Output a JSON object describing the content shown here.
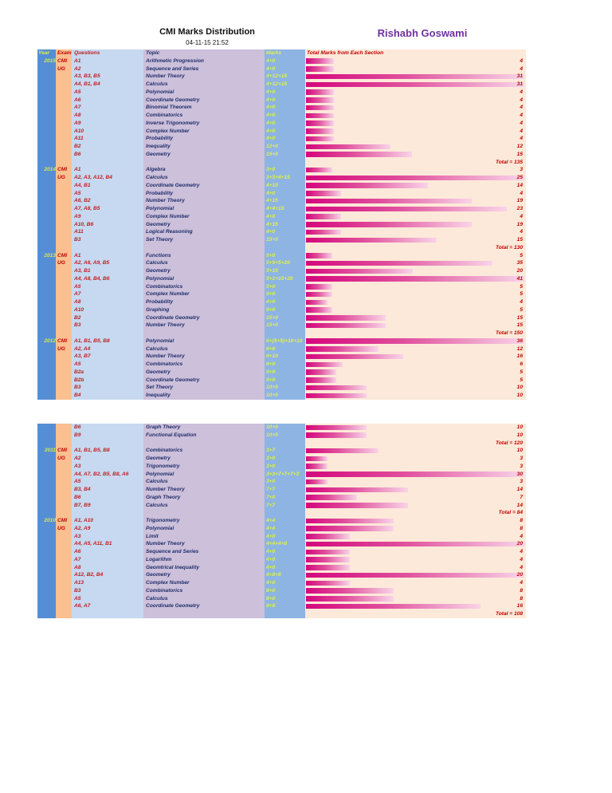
{
  "document": {
    "title": "CMI Marks Distribution",
    "date": "04-11-15 21:52",
    "author": "Rishabh Goswami"
  },
  "header": {
    "year": "Year",
    "exam": "Exam",
    "questions": "Questions",
    "topic": "Topic",
    "marks": "Marks",
    "total": "Total Marks from Each Section"
  },
  "colors": {
    "year_col": "#558ed5",
    "exam_col": "#fac090",
    "questions_col": "#c6d9f1",
    "topic_col": "#ccc0da",
    "marks_col": "#8eb4e3",
    "bar_area": "#fde9d9",
    "bar": "#d4067c",
    "author": "#7030a0"
  },
  "pages": [
    {
      "sections": [
        {
          "year": "2015",
          "exam": [
            "CMI",
            "UG"
          ],
          "total_label": "Total = 135",
          "rows": [
            {
              "q": "A1",
              "topic": "Arithmetic Progression",
              "marks": "4+0",
              "total": 4
            },
            {
              "q": "A2",
              "topic": "Sequence and Series",
              "marks": "4+0",
              "total": 4
            },
            {
              "q": "A3, B3, B5",
              "topic": "Number Theory",
              "marks": "4+12+15",
              "total": 31
            },
            {
              "q": "A4, B1, B4",
              "topic": "Calculus",
              "marks": "4+12+15",
              "total": 31
            },
            {
              "q": "A5",
              "topic": "Polynomial",
              "marks": "4+0",
              "total": 4
            },
            {
              "q": "A6",
              "topic": "Coordinate Geometry",
              "marks": "4+0",
              "total": 4
            },
            {
              "q": "A7",
              "topic": "Binomial Theorem",
              "marks": "4+0",
              "total": 4
            },
            {
              "q": "A8",
              "topic": "Combinatorics",
              "marks": "4+0",
              "total": 4
            },
            {
              "q": "A9",
              "topic": "Inverse Trigonometry",
              "marks": "4+0",
              "total": 4
            },
            {
              "q": "A10",
              "topic": "Complex Number",
              "marks": "4+0",
              "total": 4
            },
            {
              "q": "A11",
              "topic": "Probability",
              "marks": "4+0",
              "total": 4
            },
            {
              "q": "B2",
              "topic": "Inequality",
              "marks": "12+0",
              "total": 12
            },
            {
              "q": "B6",
              "topic": "Geometry",
              "marks": "15+0",
              "total": 15
            }
          ]
        },
        {
          "year": "2014",
          "exam": [
            "CMI",
            "UG"
          ],
          "total_label": "Total = 130",
          "rows": [
            {
              "q": "A1",
              "topic": "Algebra",
              "marks": "3+0",
              "total": 3
            },
            {
              "q": "A2, A3, A12, B4",
              "topic": "Calculus",
              "marks": "3+3+4+15",
              "total": 25
            },
            {
              "q": "A4, B1",
              "topic": "Coordinate Geometry",
              "marks": "4+10",
              "total": 14
            },
            {
              "q": "A5",
              "topic": "Probability",
              "marks": "4+0",
              "total": 4
            },
            {
              "q": "A6, B2",
              "topic": "Number Theory",
              "marks": "4+15",
              "total": 19
            },
            {
              "q": "A7, A8, B5",
              "topic": "Polynomial",
              "marks": "4+4+15",
              "total": 23
            },
            {
              "q": "A9",
              "topic": "Complex Number",
              "marks": "4+0",
              "total": 4
            },
            {
              "q": "A10, B6",
              "topic": "Geometry",
              "marks": "4+15",
              "total": 19
            },
            {
              "q": "A11",
              "topic": "Logical Reasoning",
              "marks": "4+0",
              "total": 4
            },
            {
              "q": "B3",
              "topic": "Set Theory",
              "marks": "15+0",
              "total": 15
            }
          ]
        },
        {
          "year": "2013",
          "exam": [
            "CMI",
            "UG"
          ],
          "total_label": "Total = 150",
          "rows": [
            {
              "q": "A1",
              "topic": "Functions",
              "marks": "5+0",
              "total": 5
            },
            {
              "q": "A2, A6, A9, B5",
              "topic": "Calculus",
              "marks": "5+5+5+20",
              "total": 35
            },
            {
              "q": "A3, B1",
              "topic": "Geometry",
              "marks": "5+15",
              "total": 20
            },
            {
              "q": "A4, A8, B4, B6",
              "topic": "Polynomial",
              "marks": "5+1+15+20",
              "total": 41
            },
            {
              "q": "A5",
              "topic": "Combinatorics",
              "marks": "5+0",
              "total": 5
            },
            {
              "q": "A7",
              "topic": "Complex Number",
              "marks": "5+0",
              "total": 5
            },
            {
              "q": "A8",
              "topic": "Probability",
              "marks": "4+0",
              "total": 4
            },
            {
              "q": "A10",
              "topic": "Graphing",
              "marks": "5+0",
              "total": 5
            },
            {
              "q": "B2",
              "topic": "Coordinate Geometry",
              "marks": "15+0",
              "total": 15
            },
            {
              "q": "B3",
              "topic": "Number Theory",
              "marks": "15+0",
              "total": 15
            }
          ]
        },
        {
          "year": "2012",
          "exam": [
            "CMI",
            "UG"
          ],
          "total_label": "",
          "rows": [
            {
              "q": "A1, B1, B5, B8",
              "topic": "Polynomial",
              "marks": "6+(5+5)+10+10",
              "total": 36
            },
            {
              "q": "A2, A4",
              "topic": "Calculus",
              "marks": "6+6",
              "total": 12
            },
            {
              "q": "A3, B7",
              "topic": "Number Theory",
              "marks": "6+10",
              "total": 16
            },
            {
              "q": "A5",
              "topic": "Combinatorics",
              "marks": "6+0",
              "total": 6
            },
            {
              "q": "B2a",
              "topic": "Geometry",
              "marks": "5+0",
              "total": 5
            },
            {
              "q": "B2b",
              "topic": "Coordinate Geometry",
              "marks": "5+0",
              "total": 5
            },
            {
              "q": "B3",
              "topic": "Set Theory",
              "marks": "10+0",
              "total": 10
            },
            {
              "q": "B4",
              "topic": "Inequality",
              "marks": "10+0",
              "total": 10
            }
          ]
        }
      ]
    },
    {
      "sections": [
        {
          "year": "",
          "exam": [
            "",
            ""
          ],
          "total_label": "Total = 120",
          "rows": [
            {
              "q": "B6",
              "topic": "Graph Theory",
              "marks": "10+0",
              "total": 10
            },
            {
              "q": "B9",
              "topic": "Functional Equation",
              "marks": "10+0",
              "total": 10
            }
          ]
        },
        {
          "year": "2011",
          "exam": [
            "CMI",
            "UG"
          ],
          "total_label": "Total = 84",
          "rows": [
            {
              "q": "A1, B1, B5, B8",
              "topic": "Combinatorics",
              "marks": "3+7",
              "total": 10
            },
            {
              "q": "A2",
              "topic": "Geometry",
              "marks": "3+0",
              "total": 3
            },
            {
              "q": "A3",
              "topic": "Trigonometry",
              "marks": "3+0",
              "total": 3
            },
            {
              "q": "A4, A7, B2, B5, B8, A6",
              "topic": "Polynomial",
              "marks": "3+3+7+7+7+3",
              "total": 30
            },
            {
              "q": "A5",
              "topic": "Calculus",
              "marks": "3+0",
              "total": 3
            },
            {
              "q": "B3, B4",
              "topic": "Number Theory",
              "marks": "7+7",
              "total": 14
            },
            {
              "q": "B6",
              "topic": "Graph Theory",
              "marks": "7+0",
              "total": 7
            },
            {
              "q": "B7, B9",
              "topic": "Calculus",
              "marks": "7+7",
              "total": 14
            }
          ]
        },
        {
          "year": "2010",
          "exam": [
            "CMI",
            "UG"
          ],
          "total_label": "Total = 108",
          "rows": [
            {
              "q": "A1, A10",
              "topic": "Trigonometry",
              "marks": "4+4",
              "total": 8
            },
            {
              "q": "A2, A9",
              "topic": "Polynomial",
              "marks": "4+4",
              "total": 8
            },
            {
              "q": "A3",
              "topic": "Limit",
              "marks": "4+0",
              "total": 4
            },
            {
              "q": "A4, A5, A11, B1",
              "topic": "Number Theory",
              "marks": "4+4+4+8",
              "total": 20
            },
            {
              "q": "A6",
              "topic": "Sequence and Series",
              "marks": "4+0",
              "total": 4
            },
            {
              "q": "A7",
              "topic": "Logarithm",
              "marks": "4+0",
              "total": 4
            },
            {
              "q": "A8",
              "topic": "Geomtrical Inequality",
              "marks": "4+0",
              "total": 4
            },
            {
              "q": "A12, B2, B4",
              "topic": "Geometry",
              "marks": "4+8+8",
              "total": 20
            },
            {
              "q": "A13",
              "topic": "Complex Number",
              "marks": "4+0",
              "total": 4
            },
            {
              "q": "B3",
              "topic": "Combinatorics",
              "marks": "8+0",
              "total": 8
            },
            {
              "q": "A5",
              "topic": "Calculus",
              "marks": "8+0",
              "total": 8
            },
            {
              "q": "A6, A7",
              "topic": "Coordinate Geometry",
              "marks": "8+8",
              "total": 16
            }
          ]
        }
      ]
    }
  ]
}
